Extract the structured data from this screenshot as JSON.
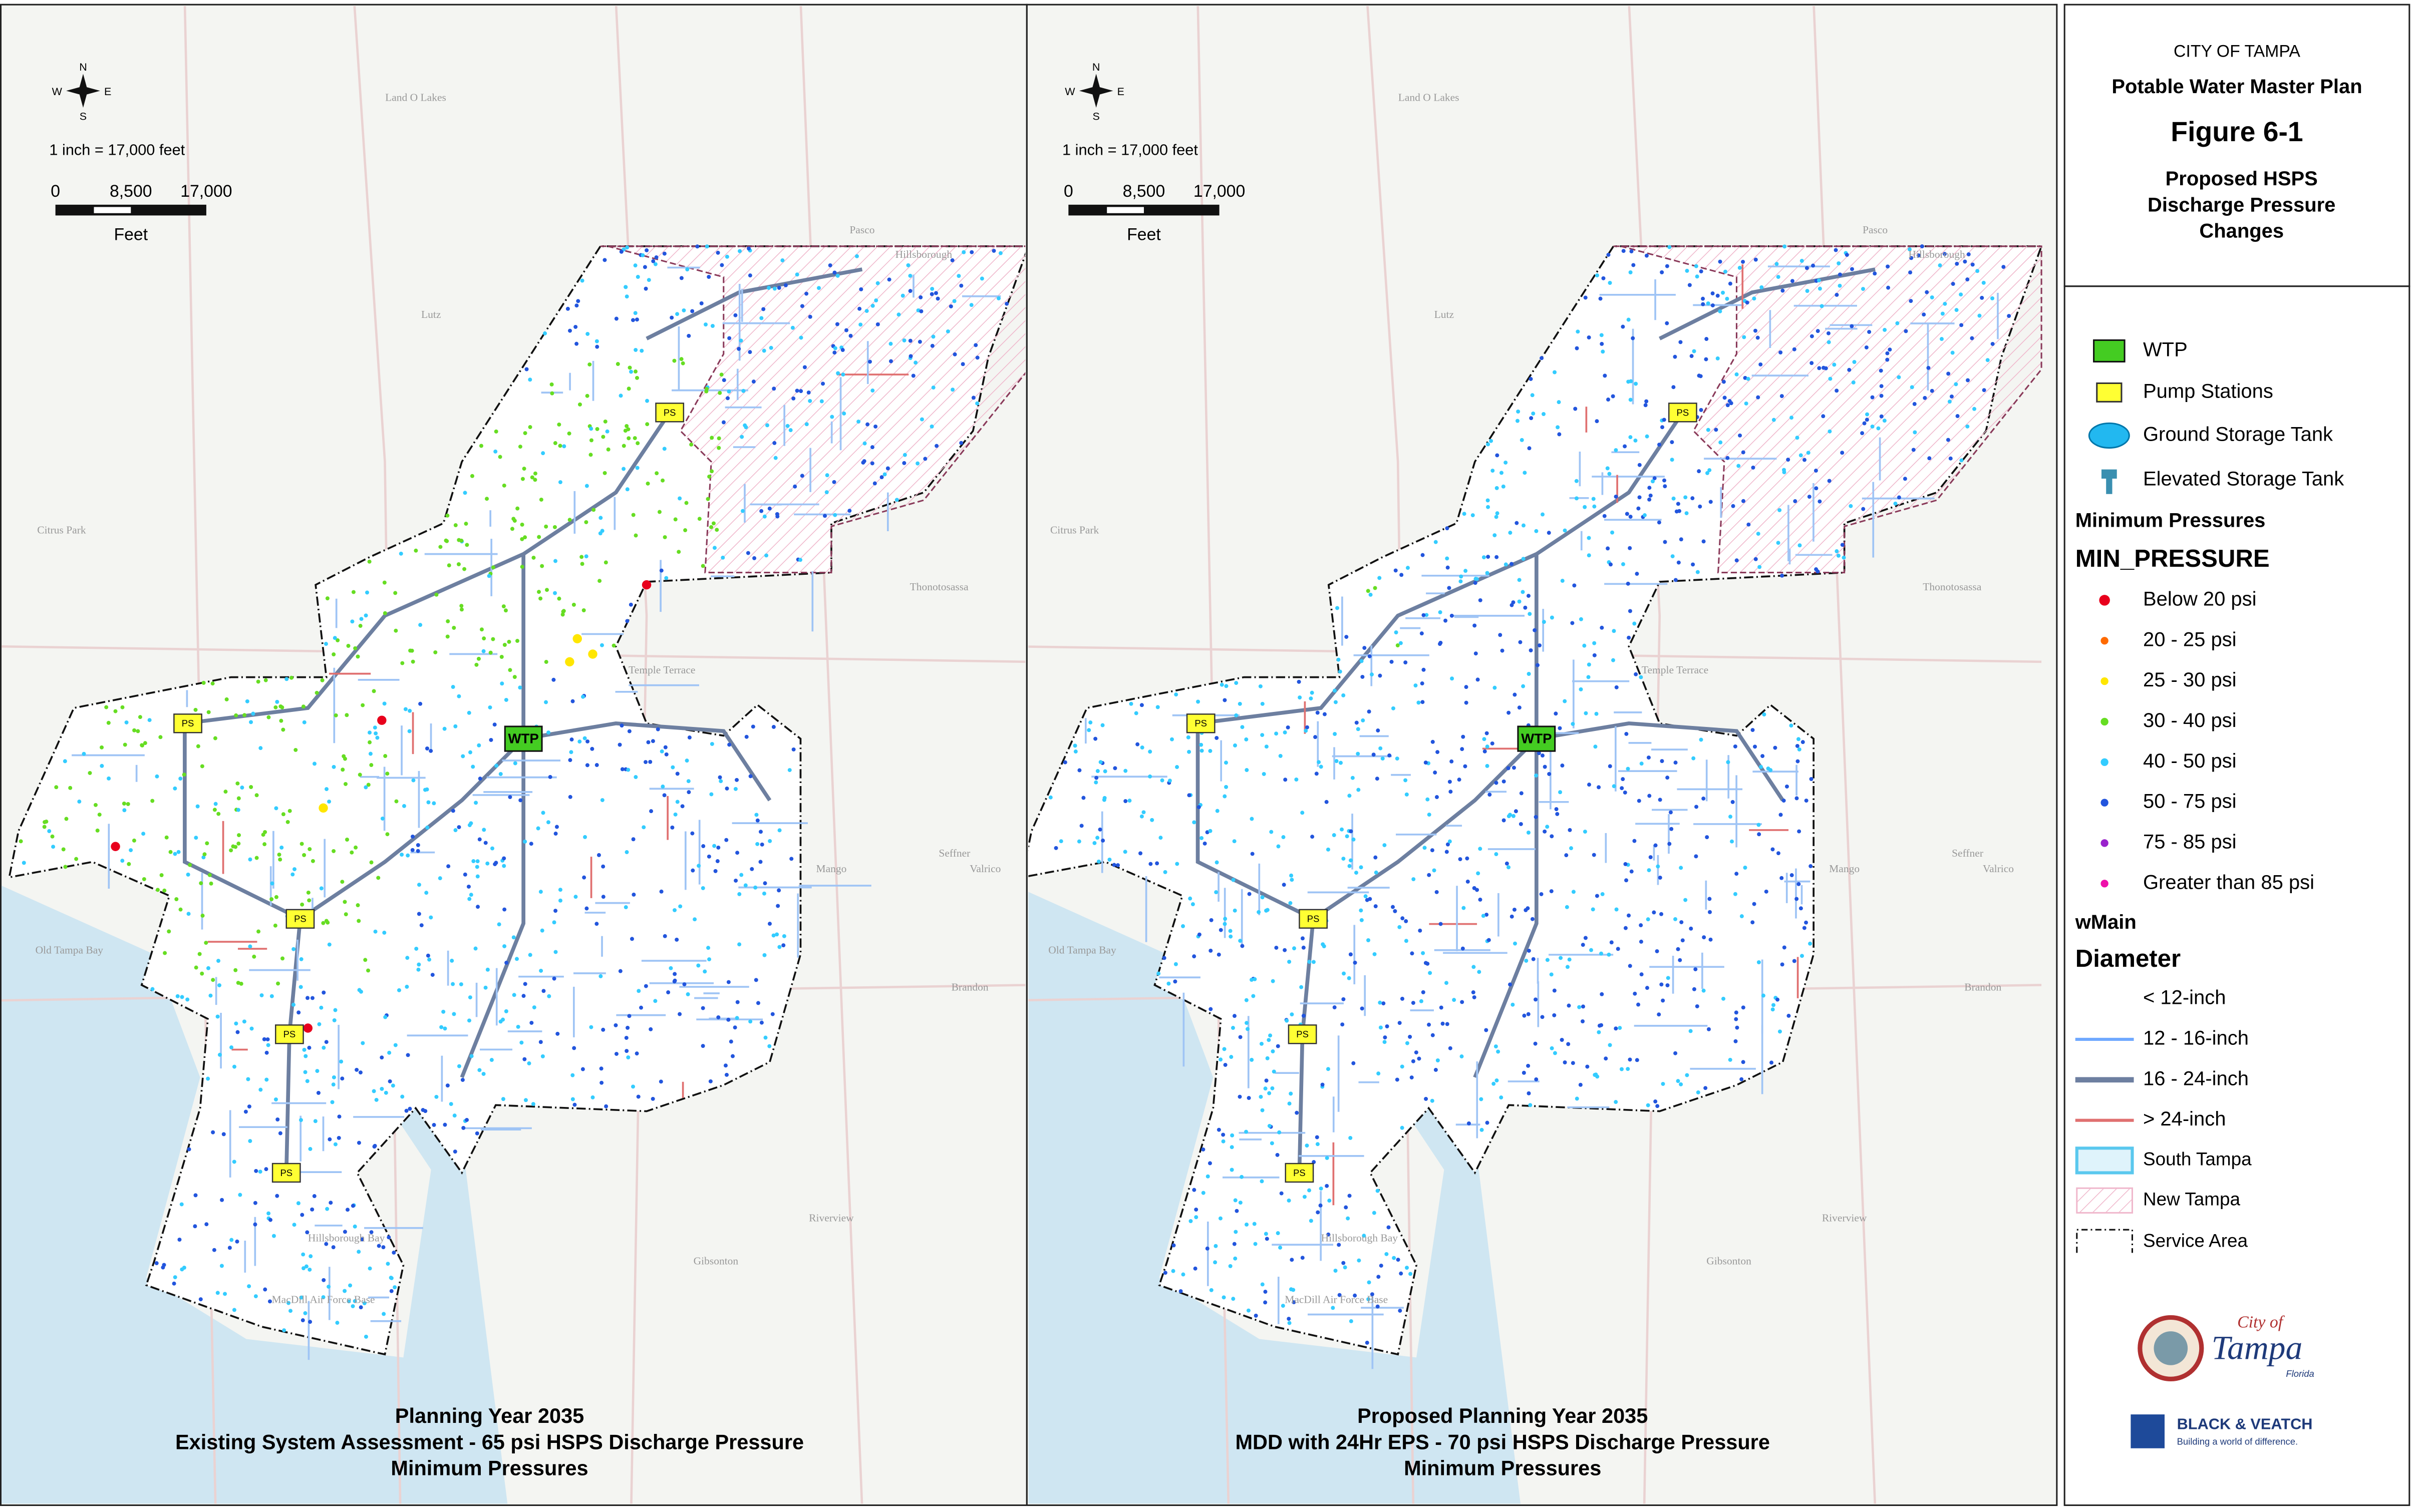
{
  "left_map": {
    "compass": {
      "n": "N",
      "s": "S",
      "e": "E",
      "w": "W"
    },
    "scale_text": "1 inch = 17,000 feet",
    "scale_ticks": [
      "0",
      "8,500",
      "17,000"
    ],
    "scale_unit": "Feet",
    "caption": [
      "Planning Year 2035",
      "Existing System Assessment - 65 psi HSPS Discharge Pressure",
      "Minimum Pressures"
    ]
  },
  "right_map": {
    "compass": {
      "n": "N",
      "s": "S",
      "e": "E",
      "w": "W"
    },
    "scale_text": "1 inch = 17,000 feet",
    "scale_ticks": [
      "0",
      "8,500",
      "17,000"
    ],
    "scale_unit": "Feet",
    "caption": [
      "Proposed Planning Year 2035",
      "MDD with 24Hr EPS  - 70 psi HSPS Discharge Pressure",
      "Minimum Pressures"
    ]
  },
  "place_labels": [
    "Land O Lakes",
    "Lutz",
    "Citrus Park",
    "Temple Terrace",
    "Thonotosassa",
    "Mango",
    "Seffner",
    "Brandon",
    "Valrico",
    "Riverview",
    "Gibsonton",
    "Old Tampa Bay",
    "Hillsborough Bay",
    "MacDill Air Force Base",
    "Pasco",
    "Hillsborough"
  ],
  "markers": {
    "wtp": "WTP",
    "ps": "PS"
  },
  "title_block": {
    "city": "CITY OF TAMPA",
    "plan": "Potable Water Master Plan",
    "figure": "Figure 6-1",
    "subtitle": [
      "Proposed HSPS",
      "Discharge Pressure",
      "Changes"
    ]
  },
  "legend": {
    "facilities": [
      "WTP",
      "Pump Stations",
      "Ground Storage Tank",
      "Elevated Storage Tank"
    ],
    "min_pressures_heading": "Minimum Pressures",
    "min_pressure_field": "MIN_PRESSURE",
    "pressure_classes": [
      {
        "label": "Below 20 psi",
        "color": "#e8001c"
      },
      {
        "label": "20 - 25 psi",
        "color": "#ff6a00"
      },
      {
        "label": "25 - 30 psi",
        "color": "#ffe600"
      },
      {
        "label": "30 - 40 psi",
        "color": "#66dd22"
      },
      {
        "label": "40 - 50 psi",
        "color": "#33ccff"
      },
      {
        "label": "50 - 75 psi",
        "color": "#2255dd"
      },
      {
        "label": "75 - 85 psi",
        "color": "#9922cc"
      },
      {
        "label": "Greater than 85 psi",
        "color": "#ee11aa"
      }
    ],
    "wmain": "wMain",
    "diameter": "Diameter",
    "diameter_classes": [
      {
        "label": "< 12-inch",
        "color": "none"
      },
      {
        "label": "12 - 16-inch",
        "color": "#6fa8ff"
      },
      {
        "label": "16 - 24-inch",
        "color": "#6d7fa0"
      },
      {
        "label": "> 24-inch",
        "color": "#e07070"
      }
    ],
    "areas": [
      "South Tampa",
      "New Tampa",
      "Service Area"
    ]
  },
  "logos": {
    "city": "City of",
    "tampa": "Tampa",
    "florida": "Florida",
    "bv": "BLACK & VEATCH",
    "bv_tag": "Building a world of difference."
  }
}
